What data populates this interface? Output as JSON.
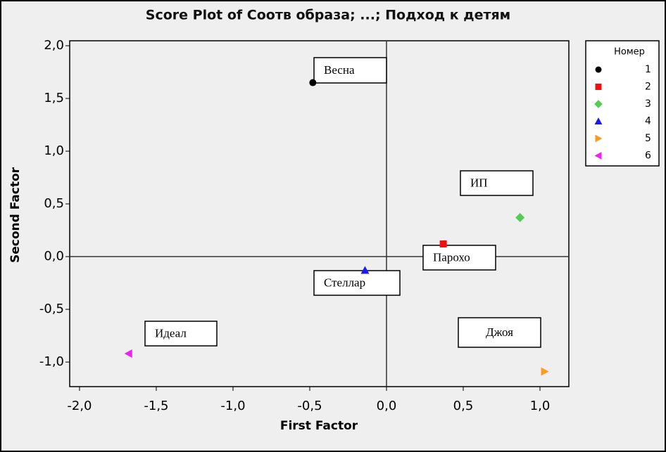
{
  "chart_data": {
    "type": "scatter",
    "title": "Score Plot of Соотв образа; ...; Подход к детям",
    "x_label": "First Factor",
    "y_label": "Second Factor",
    "xlim": [
      -2.064,
      1.188
    ],
    "ylim": [
      -1.233,
      2.047
    ],
    "xticks": [
      {
        "value": -2.0,
        "label": "-2,0"
      },
      {
        "value": -1.5,
        "label": "-1,5"
      },
      {
        "value": -1.0,
        "label": "-1,0"
      },
      {
        "value": -0.5,
        "label": "-0,5"
      },
      {
        "value": 0,
        "label": "0,0"
      },
      {
        "value": 0.5,
        "label": "0,5"
      },
      {
        "value": 1.0,
        "label": "1,0"
      }
    ],
    "yticks": [
      {
        "value": -1.0,
        "label": "-1,0"
      },
      {
        "value": -0.5,
        "label": "-0,5"
      },
      {
        "value": 0,
        "label": "0,0"
      },
      {
        "value": 0.5,
        "label": "0,5"
      },
      {
        "value": 1.0,
        "label": "1,0"
      },
      {
        "value": 1.5,
        "label": "1,5"
      },
      {
        "value": 2.0,
        "label": "2,0"
      }
    ],
    "zero_lines": true,
    "legend_title": "Номер",
    "legend_position": "right",
    "series": [
      {
        "name": "1",
        "color": "#000000",
        "marker": "circle",
        "x": [
          -0.48
        ],
        "values": [
          1.65
        ]
      },
      {
        "name": "2",
        "color": "#ee1111",
        "marker": "square",
        "x": [
          0.37
        ],
        "values": [
          0.12
        ]
      },
      {
        "name": "3",
        "color": "#55cc55",
        "marker": "diamond",
        "x": [
          0.87
        ],
        "values": [
          0.37
        ]
      },
      {
        "name": "4",
        "color": "#1a1aee",
        "marker": "triangle-up",
        "x": [
          -0.14
        ],
        "values": [
          -0.13
        ]
      },
      {
        "name": "5",
        "color": "#ff9922",
        "marker": "triangle-right",
        "x": [
          1.03
        ],
        "values": [
          -1.09
        ]
      },
      {
        "name": "6",
        "color": "#ee22ee",
        "marker": "triangle-left",
        "x": [
          -1.68
        ],
        "values": [
          -0.92
        ]
      }
    ],
    "annotations": [
      "Весна",
      "ИП",
      "Парохо",
      "Стеллар",
      "Идеал",
      "Джоя"
    ]
  }
}
